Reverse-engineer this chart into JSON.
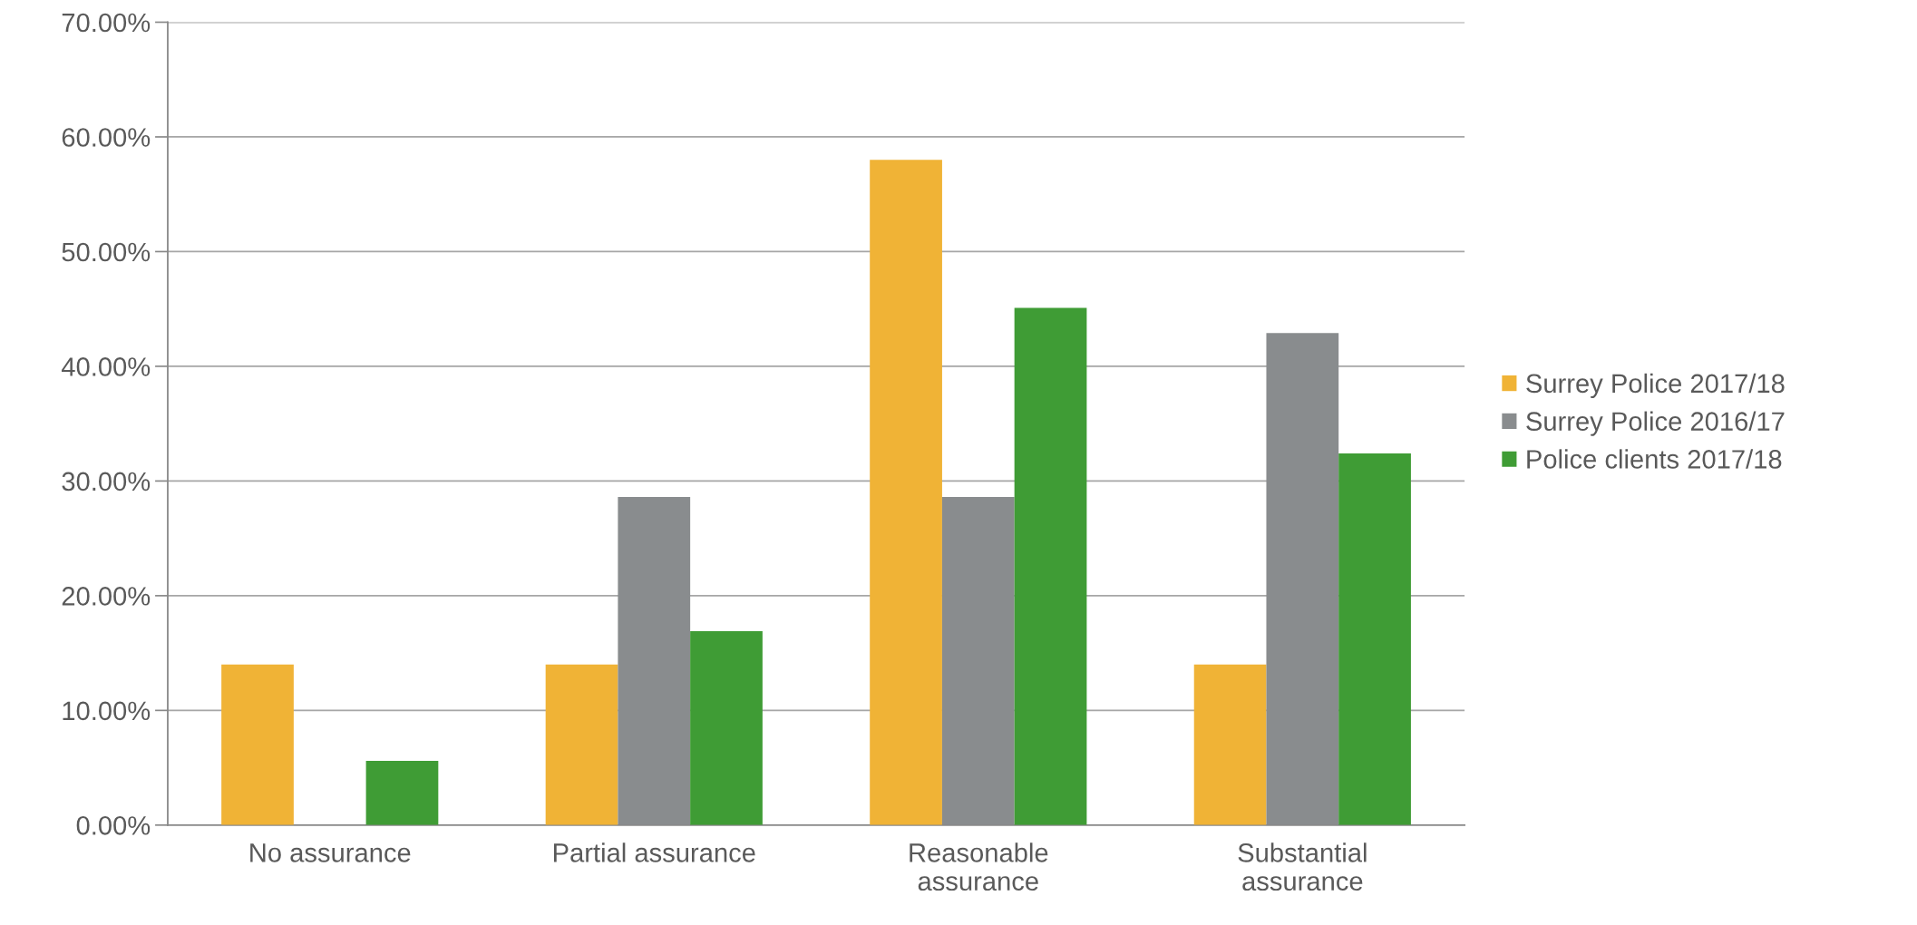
{
  "chart_data": {
    "type": "bar",
    "categories": [
      "No assurance",
      "Partial assurance",
      "Reasonable\nassurance",
      "Substantial\nassurance"
    ],
    "series": [
      {
        "name": "Surrey Police 2017/18",
        "color": "#f0b336",
        "values": [
          14,
          14,
          58,
          14
        ]
      },
      {
        "name": "Surrey Police 2016/17",
        "color": "#898c8e",
        "values": [
          0,
          28.6,
          28.6,
          42.9
        ]
      },
      {
        "name": "Police clients 2017/18",
        "color": "#3f9c35",
        "values": [
          5.6,
          16.9,
          45.1,
          32.4
        ]
      }
    ],
    "ylim": [
      0,
      70
    ],
    "yticks": [
      {
        "value": 0,
        "label": "0.00%"
      },
      {
        "value": 10,
        "label": "10.00%"
      },
      {
        "value": 20,
        "label": "20.00%"
      },
      {
        "value": 30,
        "label": "30.00%"
      },
      {
        "value": 40,
        "label": "40.00%"
      },
      {
        "value": 50,
        "label": "50.00%"
      },
      {
        "value": 60,
        "label": "60.00%"
      },
      {
        "value": 70,
        "label": "70.00%"
      }
    ],
    "grid": "y",
    "legend": "right"
  }
}
